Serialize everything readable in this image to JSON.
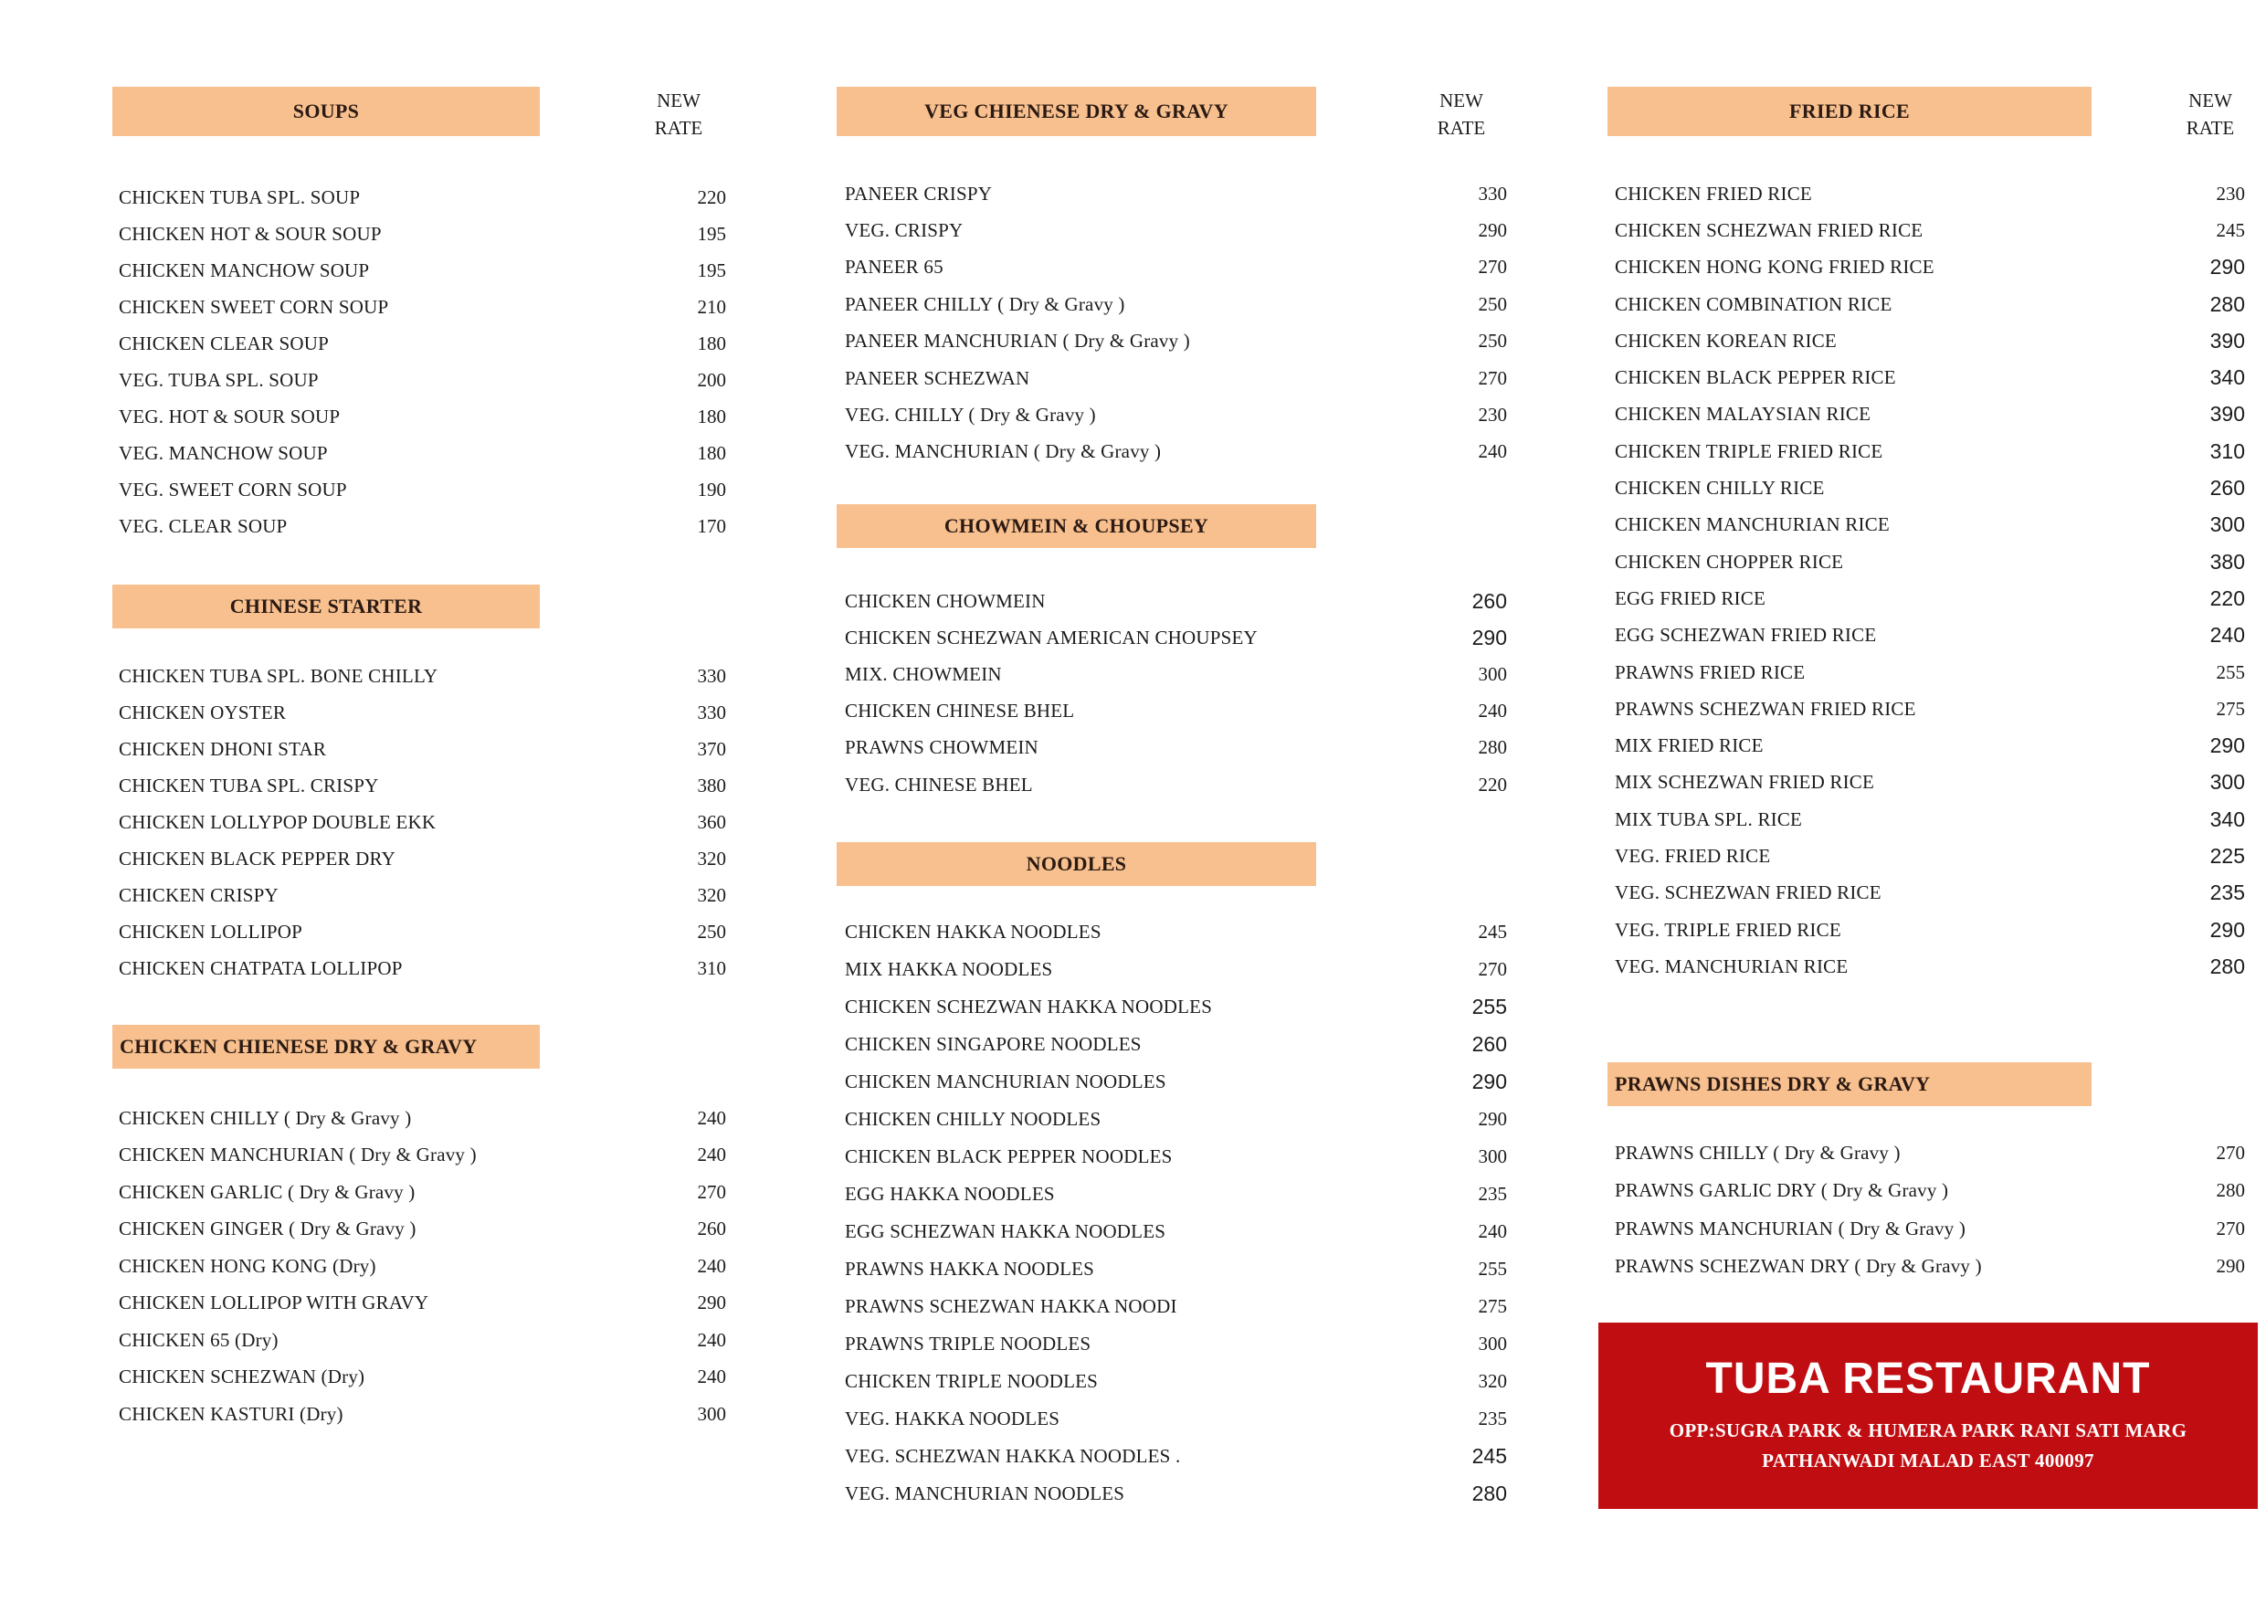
{
  "rate_header": {
    "line1": "NEW",
    "line2": "RATE"
  },
  "colors": {
    "orange_header": "#F8C08E",
    "header_text": "#2B1A13",
    "body_text": "#1C1C1C",
    "banner_red": "#C00D11",
    "banner_text": "#FFFFFF"
  },
  "columns": [
    {
      "sections": [
        {
          "title": "SOUPS",
          "items": [
            {
              "name": "CHICKEN TUBA SPL. SOUP",
              "price": "220"
            },
            {
              "name": "CHICKEN HOT & SOUR SOUP",
              "price": "195"
            },
            {
              "name": "CHICKEN MANCHOW SOUP",
              "price": "195"
            },
            {
              "name": "CHICKEN SWEET CORN SOUP",
              "price": "210"
            },
            {
              "name": "CHICKEN CLEAR SOUP",
              "price": "180"
            },
            {
              "name": "VEG. TUBA SPL. SOUP",
              "price": "200"
            },
            {
              "name": "VEG. HOT & SOUR SOUP",
              "price": "180"
            },
            {
              "name": "VEG. MANCHOW SOUP",
              "price": "180"
            },
            {
              "name": "VEG. SWEET CORN SOUP",
              "price": "190"
            },
            {
              "name": "VEG. CLEAR SOUP",
              "price": "170"
            }
          ]
        },
        {
          "title": "CHINESE STARTER",
          "items": [
            {
              "name": "CHICKEN TUBA SPL. BONE CHILLY",
              "price": "330"
            },
            {
              "name": "CHICKEN OYSTER",
              "price": "330"
            },
            {
              "name": "CHICKEN DHONI STAR",
              "price": "370"
            },
            {
              "name": "CHICKEN TUBA SPL. CRISPY",
              "price": "380"
            },
            {
              "name": "CHICKEN LOLLYPOP DOUBLE EKK",
              "price": "360"
            },
            {
              "name": "CHICKEN BLACK PEPPER DRY",
              "price": "320"
            },
            {
              "name": "CHICKEN CRISPY",
              "price": "320"
            },
            {
              "name": "CHICKEN LOLLIPOP",
              "price": "250"
            },
            {
              "name": "CHICKEN CHATPATA LOLLIPOP",
              "price": "310"
            }
          ]
        },
        {
          "title": "CHICKEN CHIENESE DRY & GRAVY",
          "items": [
            {
              "name": "CHICKEN CHILLY ( Dry & Gravy )",
              "price": "240"
            },
            {
              "name": "CHICKEN MANCHURIAN ( Dry & Gravy )",
              "price": "240"
            },
            {
              "name": "CHICKEN GARLIC ( Dry & Gravy )",
              "price": "270"
            },
            {
              "name": "CHICKEN GINGER ( Dry & Gravy )",
              "price": "260"
            },
            {
              "name": "CHICKEN HONG KONG (Dry)",
              "price": "240"
            },
            {
              "name": "CHICKEN LOLLIPOP WITH GRAVY",
              "price": "290"
            },
            {
              "name": "CHICKEN 65 (Dry)",
              "price": "240"
            },
            {
              "name": "CHICKEN SCHEZWAN (Dry)",
              "price": "240"
            },
            {
              "name": "CHICKEN KASTURI (Dry)",
              "price": "300"
            }
          ]
        }
      ]
    },
    {
      "sections": [
        {
          "title": "VEG CHIENESE DRY & GRAVY",
          "items": [
            {
              "name": "PANEER CRISPY",
              "price": "330"
            },
            {
              "name": "VEG. CRISPY",
              "price": "290"
            },
            {
              "name": "PANEER 65",
              "price": "270"
            },
            {
              "name": "PANEER CHILLY ( Dry & Gravy )",
              "price": "250"
            },
            {
              "name": "PANEER MANCHURIAN ( Dry & Gravy )",
              "price": "250"
            },
            {
              "name": "PANEER SCHEZWAN",
              "price": "270"
            },
            {
              "name": "VEG. CHILLY ( Dry & Gravy )",
              "price": "230"
            },
            {
              "name": "VEG. MANCHURIAN ( Dry & Gravy )",
              "price": "240"
            }
          ]
        },
        {
          "title": "CHOWMEIN & CHOUPSEY",
          "items": [
            {
              "name": "CHICKEN CHOWMEIN",
              "price": "260",
              "sans": true
            },
            {
              "name": "CHICKEN SCHEZWAN AMERICAN CHOUPSEY",
              "price": "290",
              "sans": true
            },
            {
              "name": "MIX. CHOWMEIN",
              "price": "300"
            },
            {
              "name": "CHICKEN CHINESE BHEL",
              "price": "240"
            },
            {
              "name": "PRAWNS CHOWMEIN",
              "price": "280"
            },
            {
              "name": "VEG. CHINESE BHEL",
              "price": "220"
            }
          ]
        },
        {
          "title": "NOODLES",
          "items": [
            {
              "name": "CHICKEN HAKKA NOODLES",
              "price": "245"
            },
            {
              "name": "MIX HAKKA NOODLES",
              "price": "270"
            },
            {
              "name": "CHICKEN SCHEZWAN HAKKA NOODLES",
              "price": "255",
              "sans": true
            },
            {
              "name": "CHICKEN SINGAPORE NOODLES",
              "price": "260",
              "sans": true
            },
            {
              "name": "CHICKEN MANCHURIAN NOODLES",
              "price": "290",
              "sans": true
            },
            {
              "name": "CHICKEN CHILLY NOODLES",
              "price": "290"
            },
            {
              "name": "CHICKEN BLACK PEPPER NOODLES",
              "price": "300"
            },
            {
              "name": "EGG HAKKA NOODLES",
              "price": "235"
            },
            {
              "name": "EGG SCHEZWAN HAKKA NOODLES",
              "price": "240"
            },
            {
              "name": "PRAWNS HAKKA NOODLES",
              "price": "255"
            },
            {
              "name": "PRAWNS SCHEZWAN HAKKA NOODI",
              "price": "275"
            },
            {
              "name": "PRAWNS TRIPLE NOODLES",
              "price": "300"
            },
            {
              "name": "CHICKEN TRIPLE NOODLES",
              "price": "320"
            },
            {
              "name": "VEG. HAKKA NOODLES",
              "price": "235"
            },
            {
              "name": "VEG. SCHEZWAN HAKKA NOODLES .",
              "price": "245",
              "sans": true
            },
            {
              "name": "VEG. MANCHURIAN NOODLES",
              "price": "280",
              "sans": true
            }
          ]
        }
      ]
    },
    {
      "sections": [
        {
          "title": "FRIED RICE",
          "items": [
            {
              "name": "CHICKEN FRIED RICE",
              "price": "230"
            },
            {
              "name": "CHICKEN SCHEZWAN FRIED RICE",
              "price": "245"
            },
            {
              "name": "CHICKEN HONG KONG FRIED RICE",
              "price": "290",
              "sans": true
            },
            {
              "name": "CHICKEN COMBINATION RICE",
              "price": "280",
              "sans": true
            },
            {
              "name": "CHICKEN KOREAN RICE",
              "price": "390",
              "sans": true
            },
            {
              "name": "CHICKEN BLACK PEPPER RICE",
              "price": "340",
              "sans": true
            },
            {
              "name": "CHICKEN MALAYSIAN RICE",
              "price": "390",
              "sans": true
            },
            {
              "name": "CHICKEN TRIPLE FRIED RICE",
              "price": "310",
              "sans": true
            },
            {
              "name": "CHICKEN CHILLY RICE",
              "price": "260",
              "sans": true
            },
            {
              "name": "CHICKEN MANCHURIAN RICE",
              "price": "300",
              "sans": true
            },
            {
              "name": "CHICKEN CHOPPER RICE",
              "price": "380",
              "sans": true
            },
            {
              "name": "EGG FRIED RICE",
              "price": "220",
              "sans": true
            },
            {
              "name": "EGG SCHEZWAN FRIED RICE",
              "price": "240",
              "sans": true
            },
            {
              "name": "PRAWNS FRIED RICE",
              "price": "255"
            },
            {
              "name": "PRAWNS SCHEZWAN FRIED RICE",
              "price": "275"
            },
            {
              "name": "MIX FRIED RICE",
              "price": "290",
              "sans": true
            },
            {
              "name": "MIX SCHEZWAN FRIED RICE",
              "price": "300",
              "sans": true
            },
            {
              "name": "MIX TUBA SPL. RICE",
              "price": "340",
              "sans": true
            },
            {
              "name": "VEG. FRIED RICE",
              "price": "225",
              "sans": true
            },
            {
              "name": "VEG. SCHEZWAN FRIED RICE",
              "price": "235",
              "sans": true
            },
            {
              "name": "VEG. TRIPLE FRIED RICE",
              "price": "290",
              "sans": true
            },
            {
              "name": "VEG. MANCHURIAN RICE",
              "price": "280",
              "sans": true
            }
          ]
        },
        {
          "title": "PRAWNS DISHES DRY & GRAVY",
          "items": [
            {
              "name": "PRAWNS CHILLY ( Dry & Gravy )",
              "price": "270"
            },
            {
              "name": "PRAWNS GARLIC DRY ( Dry & Gravy )",
              "price": "280"
            },
            {
              "name": "PRAWNS MANCHURIAN ( Dry & Gravy )",
              "price": "270"
            },
            {
              "name": "PRAWNS SCHEZWAN DRY ( Dry & Gravy )",
              "price": "290"
            }
          ]
        }
      ]
    }
  ],
  "banner": {
    "name": "TUBA RESTAURANT",
    "address_line1": "OPP:SUGRA PARK & HUMERA PARK RANI SATI MARG",
    "address_line2": "PATHANWADI MALAD EAST 400097"
  }
}
